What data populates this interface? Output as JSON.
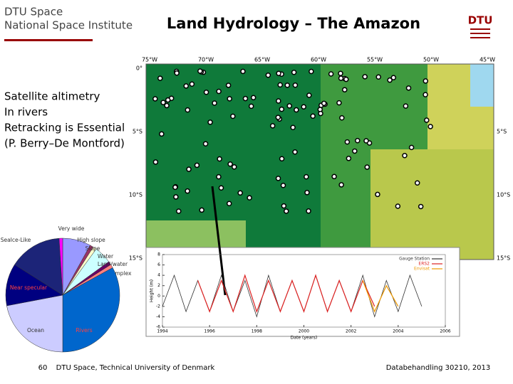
{
  "header": {
    "org": "DTU Space",
    "institute": "National Space Institute",
    "title": "Land Hydrology – The Amazon",
    "logo": "DTU"
  },
  "bullets": [
    "Satellite altimetry",
    "In rivers",
    "Retracking is Essential",
    "(P. Berry–De Montford)"
  ],
  "map": {
    "lon_labels": [
      "75°W",
      "70°W",
      "65°W",
      "60°W",
      "55°W",
      "50°W",
      "45°W"
    ],
    "lat_labels": [
      "0°",
      "5°S",
      "10°S",
      "15°S"
    ]
  },
  "pie_chart": {
    "type": "pie",
    "slices": [
      {
        "label": "Very wide",
        "value": 8,
        "color": "#9999ff"
      },
      {
        "label": "High slope",
        "value": 1,
        "color": "#993366"
      },
      {
        "label": "Slope",
        "value": 1,
        "color": "#ffffcc"
      },
      {
        "label": "Water",
        "value": 5,
        "color": "#ccffff"
      },
      {
        "label": "Land/water",
        "value": 1,
        "color": "#660066"
      },
      {
        "label": "Complex",
        "value": 1,
        "color": "#ff8080"
      },
      {
        "label": "Rivers",
        "value": 33,
        "color": "#0066cc"
      },
      {
        "label": "Ocean",
        "value": 22,
        "color": "#ccccff"
      },
      {
        "label": "Near specular",
        "value": 12,
        "color": "#000080"
      },
      {
        "label": "SeaIce-Like",
        "value": 15,
        "color": "#1c2478"
      },
      {
        "label": null,
        "value": 1,
        "color": "#ff00ff"
      }
    ]
  },
  "line_chart": {
    "type": "line",
    "x_label": "Date (years)",
    "y_label": "Height (m)",
    "xlim": [
      1994,
      2006
    ],
    "xticks": [
      1994,
      1996,
      1998,
      2000,
      2002,
      2004,
      2006
    ],
    "ylim": [
      -6,
      8
    ],
    "yticks": [
      8,
      6,
      4,
      2,
      0,
      -2,
      -4,
      -6
    ],
    "series": [
      {
        "name": "Gauge Station",
        "color": "#333333",
        "x": [
          1994,
          1994.5,
          1995,
          1995.5,
          1996,
          1996.5,
          1997,
          1997.5,
          1998,
          1998.5,
          1999,
          1999.5,
          2000,
          2000.5,
          2001,
          2001.5,
          2002,
          2002.5,
          2003,
          2003.5,
          2004,
          2004.5,
          2005
        ],
        "values": [
          -2,
          4,
          -3,
          3,
          -3,
          4,
          -3,
          3,
          -4,
          4,
          -3,
          3,
          -3,
          4,
          -3,
          3,
          -3,
          4,
          -4,
          3,
          -3,
          4,
          -2
        ]
      },
      {
        "name": "ERS2",
        "color": "#dd2222",
        "x": [
          1995.5,
          1996,
          1996.5,
          1997,
          1997.5,
          1998,
          1998.5,
          1999,
          1999.5,
          2000,
          2000.5,
          2001,
          2001.5,
          2002,
          2002.5,
          2003
        ],
        "values": [
          3,
          -3,
          3,
          -3,
          4,
          -3,
          3,
          -3,
          3,
          -3,
          4,
          -3,
          3,
          -3,
          3,
          -2
        ]
      },
      {
        "name": "Envisat",
        "color": "#ee9900",
        "x": [
          2002.5,
          2003,
          2003.5,
          2004
        ],
        "values": [
          3,
          -3,
          2,
          -2
        ]
      }
    ]
  },
  "footer": {
    "page": "60",
    "source": "DTU Space, Technical University of Denmark",
    "course": "Databehandling 30210, 2013"
  }
}
